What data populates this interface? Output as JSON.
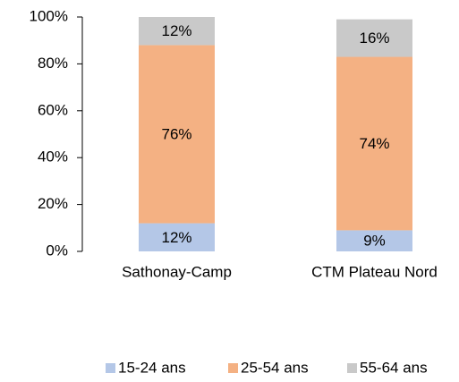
{
  "chart_data": {
    "type": "stacked_bar",
    "categories": [
      "Sathonay-Camp",
      "CTM Plateau Nord"
    ],
    "series": [
      {
        "name": "15-24 ans",
        "color": "#b4c7e7",
        "values": [
          12,
          9
        ],
        "value_labels": [
          "12%",
          "9%"
        ]
      },
      {
        "name": "25-54 ans",
        "color": "#f4b183",
        "values": [
          76,
          74
        ],
        "value_labels": [
          "76%",
          "74%"
        ]
      },
      {
        "name": "55-64 ans",
        "color": "#c9c9c9",
        "values": [
          12,
          16
        ],
        "value_labels": [
          "12%",
          "16%"
        ]
      }
    ],
    "ylim": [
      0,
      100
    ],
    "yticks": [
      {
        "value": 0,
        "label": "0%"
      },
      {
        "value": 20,
        "label": "20%"
      },
      {
        "value": 40,
        "label": "40%"
      },
      {
        "value": 60,
        "label": "60%"
      },
      {
        "value": 80,
        "label": "80%"
      },
      {
        "value": 100,
        "label": "100%"
      }
    ],
    "legend": "bottom"
  }
}
